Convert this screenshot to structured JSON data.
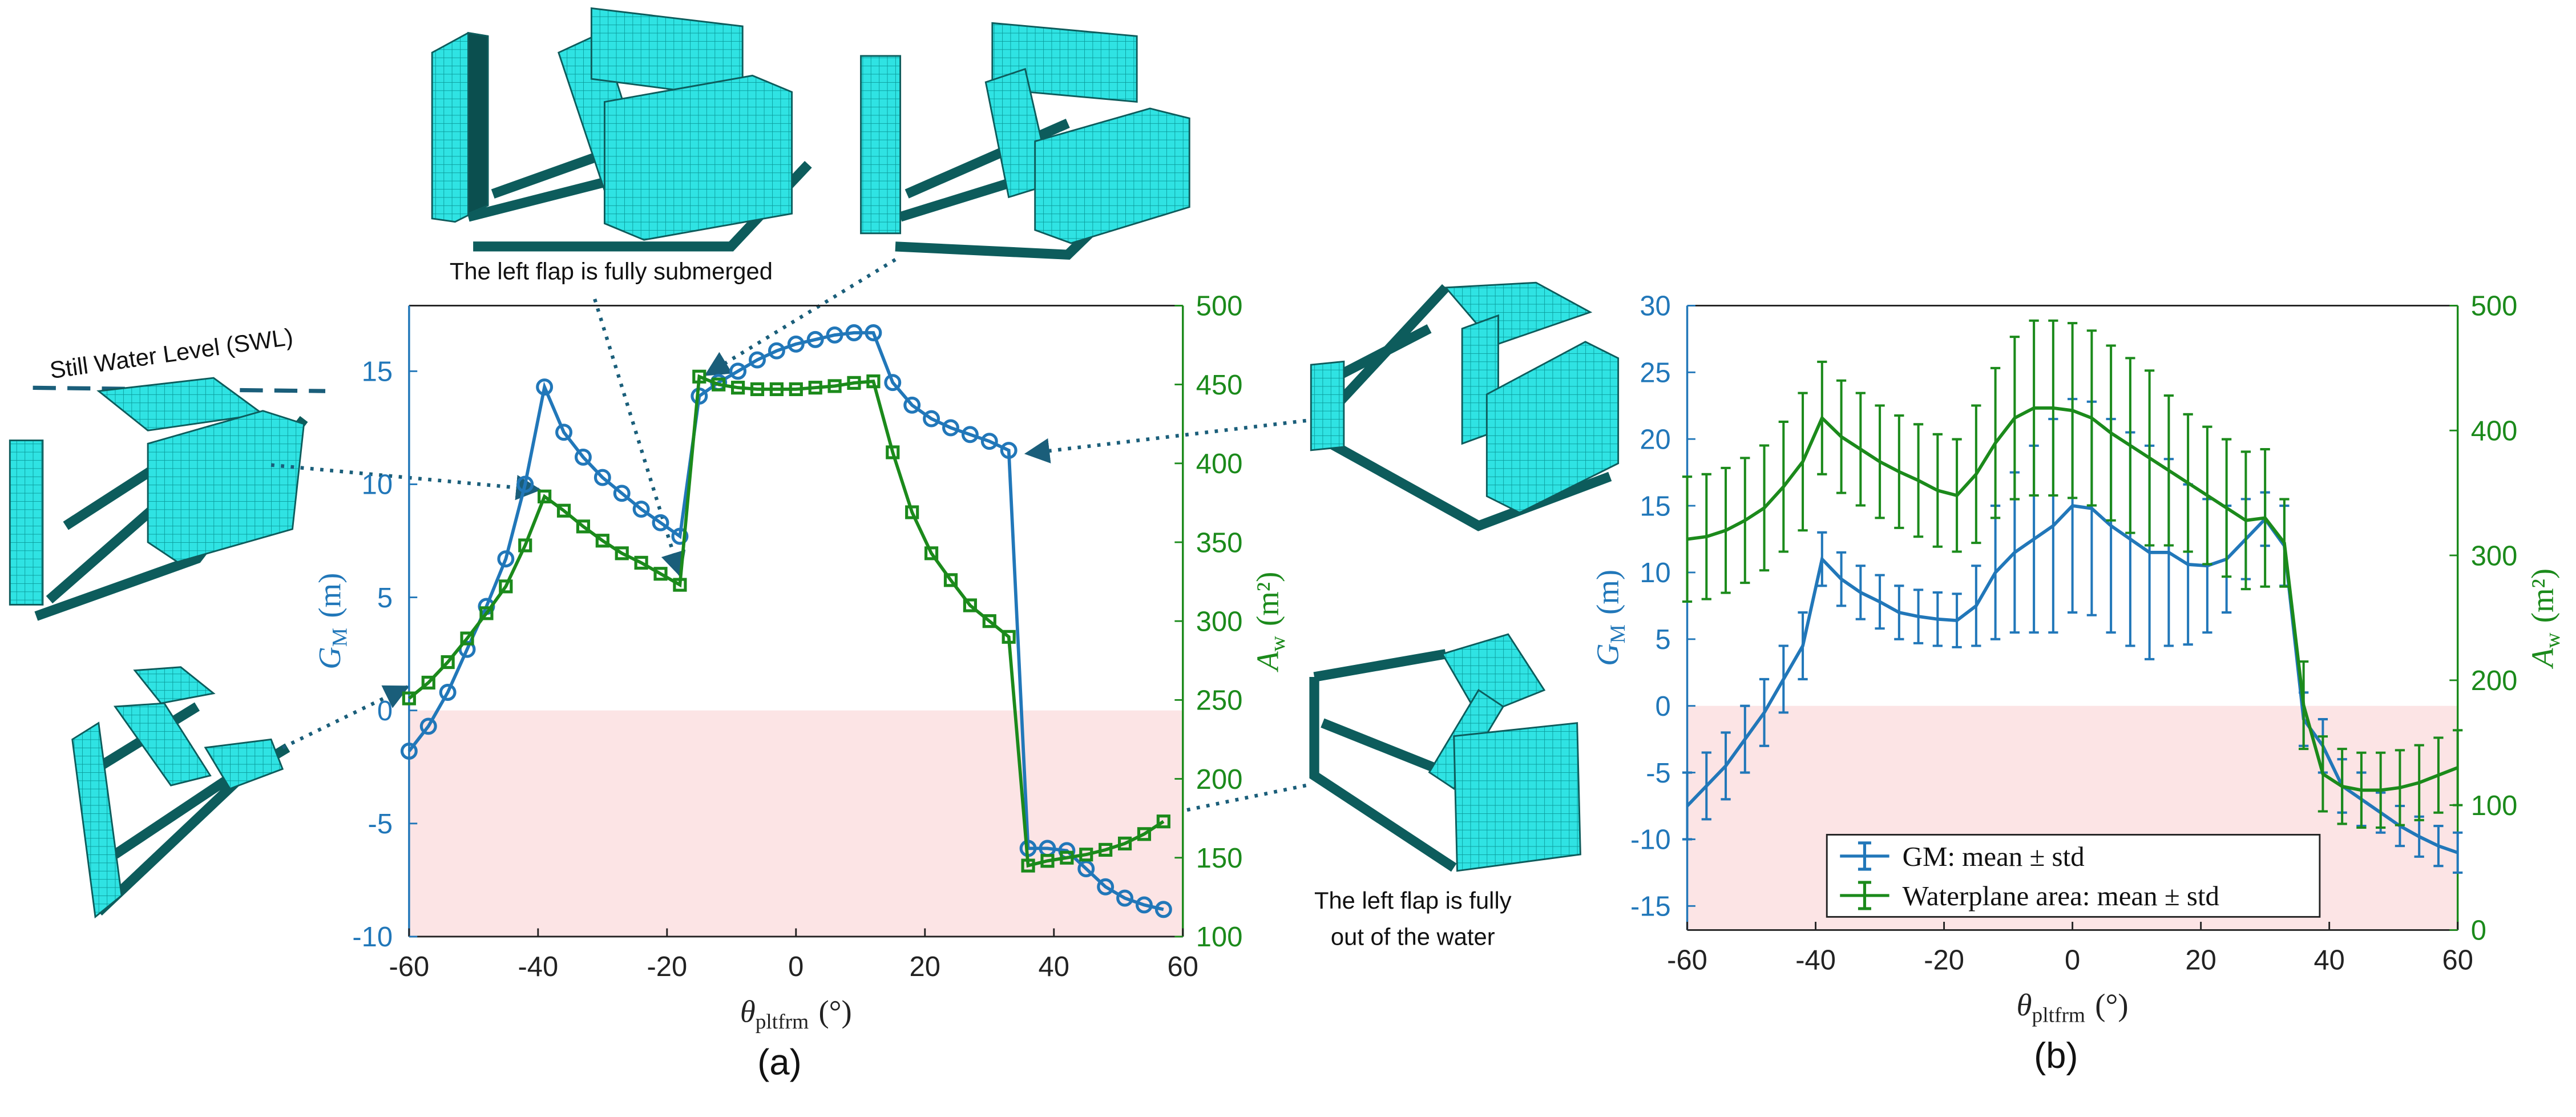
{
  "chart_data": [
    {
      "type": "line",
      "panel_label": "(a)",
      "xlabel": {
        "symbol": "θ",
        "sub": "pltfrm",
        "unit": "(°)"
      },
      "ylabel": {
        "symbol": "G",
        "sub": "M",
        "unit": "(m)"
      },
      "y2label": {
        "symbol": "A",
        "sub": "w",
        "unit": "(m²)"
      },
      "xlim": [
        -60,
        60
      ],
      "xticks": [
        -60,
        -40,
        -20,
        0,
        20,
        40,
        60
      ],
      "ylim": [
        -10,
        17.9
      ],
      "yticks": [
        -10,
        -5,
        0,
        5,
        10,
        15
      ],
      "y2lim": [
        100,
        500
      ],
      "y2ticks": [
        100,
        150,
        200,
        250,
        300,
        350,
        400,
        450,
        500
      ],
      "shade": [
        -10,
        0
      ],
      "shade_color": "#fce4e5",
      "x": [
        -60,
        -57,
        -54,
        -51,
        -48,
        -45,
        -42,
        -39,
        -36,
        -33,
        -30,
        -27,
        -24,
        -21,
        -18,
        -15,
        -12,
        -9,
        -6,
        -3,
        0,
        3,
        6,
        9,
        12,
        15,
        18,
        21,
        24,
        27,
        30,
        33,
        36,
        39,
        42,
        45,
        48,
        51,
        54,
        57
      ],
      "series": [
        {
          "color": "#2177b9",
          "marker": "circle",
          "axis": "y",
          "values": [
            -1.8,
            -0.7,
            0.8,
            2.7,
            4.6,
            6.7,
            10.0,
            14.3,
            12.3,
            11.2,
            10.3,
            9.6,
            8.9,
            8.3,
            7.7,
            13.9,
            14.5,
            15.0,
            15.5,
            15.9,
            16.2,
            16.4,
            16.6,
            16.7,
            16.7,
            14.5,
            13.5,
            12.9,
            12.5,
            12.2,
            11.9,
            11.5,
            -6.1,
            -6.1,
            -6.2,
            -7.0,
            -7.8,
            -8.3,
            -8.6,
            -8.8
          ]
        },
        {
          "color": "#1b8a1b",
          "marker": "square",
          "axis": "y2",
          "values": [
            251,
            261,
            274,
            289,
            305,
            322,
            348,
            379,
            370,
            360,
            351,
            343,
            337,
            330,
            323,
            455,
            450,
            448,
            447,
            447,
            447,
            448,
            449,
            451,
            452,
            407,
            369,
            343,
            326,
            310,
            300,
            290,
            145,
            148,
            150,
            152,
            155,
            159,
            165,
            173
          ]
        }
      ],
      "annotations": [
        "The left flap is fully submerged",
        "The left flap is fully",
        "out of the water",
        "Still Water Level (SWL)"
      ]
    },
    {
      "type": "errorbar",
      "panel_label": "(b)",
      "xlabel": {
        "symbol": "θ",
        "sub": "pltfrm",
        "unit": "(°)"
      },
      "ylabel": {
        "symbol": "G",
        "sub": "M",
        "unit": "(m)"
      },
      "y2label": {
        "symbol": "A",
        "sub": "w",
        "unit": "(m²)"
      },
      "xlim": [
        -60,
        60
      ],
      "xticks": [
        -60,
        -40,
        -20,
        0,
        20,
        40,
        60
      ],
      "ylim": [
        -16.8,
        30
      ],
      "yticks": [
        -15,
        -10,
        -5,
        0,
        5,
        10,
        15,
        20,
        25,
        30
      ],
      "y2lim": [
        0,
        500
      ],
      "y2ticks": [
        0,
        100,
        200,
        300,
        400,
        500
      ],
      "shade": [
        -16.8,
        0
      ],
      "shade_color": "#fce4e5",
      "legend": "lower center",
      "x": [
        -60,
        -57,
        -54,
        -51,
        -48,
        -45,
        -42,
        -39,
        -36,
        -33,
        -30,
        -27,
        -24,
        -21,
        -18,
        -15,
        -12,
        -9,
        -6,
        -3,
        0,
        3,
        6,
        9,
        12,
        15,
        18,
        21,
        24,
        27,
        30,
        33,
        36,
        39,
        42,
        45,
        48,
        51,
        54,
        57,
        60
      ],
      "series": [
        {
          "name": "GM: mean ± std",
          "color": "#2177b9",
          "axis": "y",
          "values": [
            -7.5,
            -6,
            -4.5,
            -2.5,
            -0.5,
            2,
            4.5,
            11,
            9.5,
            8.5,
            7.8,
            7,
            6.7,
            6.5,
            6.4,
            7.5,
            10,
            11.5,
            12.5,
            13.5,
            15,
            14.8,
            13.5,
            12.5,
            11.5,
            11.5,
            10.6,
            10.5,
            11,
            12.5,
            14,
            12,
            -1,
            -3,
            -6,
            -7,
            -8,
            -9,
            -9.8,
            -10.5,
            -11
          ],
          "errors": [
            2.5,
            2.5,
            2.5,
            2.5,
            2.5,
            2.5,
            2.5,
            2,
            2,
            2,
            2,
            2,
            2,
            2,
            2,
            3,
            5,
            6,
            7,
            8,
            8,
            8,
            8,
            8,
            8,
            7,
            6,
            5,
            4,
            3,
            2,
            3,
            2,
            2,
            2,
            2,
            1.5,
            1.5,
            1.5,
            1.5,
            1.5
          ]
        },
        {
          "name": "Waterplane area: mean ± std",
          "color": "#1b8a1b",
          "axis": "y2",
          "values": [
            313,
            315,
            320,
            328,
            338,
            355,
            375,
            410,
            395,
            385,
            375,
            367,
            360,
            352,
            348,
            365,
            390,
            410,
            418,
            418,
            416,
            410,
            398,
            388,
            378,
            368,
            358,
            348,
            338,
            328,
            330,
            310,
            180,
            125,
            115,
            112,
            112,
            114,
            118,
            124,
            130
          ],
          "errors": [
            50,
            50,
            50,
            50,
            50,
            52,
            55,
            45,
            45,
            45,
            45,
            45,
            45,
            45,
            45,
            55,
            60,
            65,
            70,
            70,
            70,
            70,
            70,
            70,
            70,
            60,
            55,
            55,
            55,
            55,
            55,
            35,
            35,
            30,
            30,
            30,
            30,
            30,
            30,
            30,
            30
          ]
        }
      ]
    }
  ]
}
